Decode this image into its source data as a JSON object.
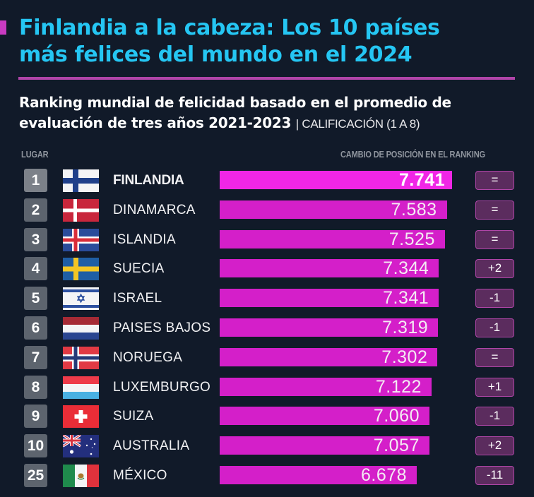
{
  "header": {
    "title_line1": "Finlandia a la cabeza: Los 10 países",
    "title_line2": "más felices del mundo en el 2024",
    "subtitle_line1": "Ranking mundial de felicidad basado en el promedio de",
    "subtitle_line2": "evaluación de tres años 2021-2023",
    "subtitle_note": "| CALIFICACIÓN (1 A 8)"
  },
  "columns": {
    "place": "LUGAR",
    "change": "CAMBIO DE POSICIÓN EN EL RANKING"
  },
  "colors": {
    "background": "#111a29",
    "title": "#25c6f3",
    "bar": "#d41fc9",
    "bar_highlight": "#f126e6",
    "badge": "#5b2c5e",
    "badge_border": "#b046a8",
    "divider": "#b044a8"
  },
  "chart_data": {
    "type": "bar",
    "orientation": "horizontal",
    "title": "Finlandia a la cabeza: Los 10 países más felices del mundo en el 2024",
    "subtitle": "Ranking mundial de felicidad basado en el promedio de evaluación de tres años 2021-2023 | CALIFICACIÓN (1 A 8)",
    "xlabel": "Calificación (1 a 8)",
    "ylabel": "Lugar",
    "categories": [
      "FINLANDIA",
      "DINAMARCA",
      "ISLANDIA",
      "SUECIA",
      "ISRAEL",
      "PAISES BAJOS",
      "NORUEGA",
      "LUXEMBURGO",
      "SUIZA",
      "AUSTRALIA",
      "MÉXICO"
    ],
    "values": [
      7.741,
      7.583,
      7.525,
      7.344,
      7.341,
      7.319,
      7.302,
      7.122,
      7.06,
      7.057,
      6.678
    ],
    "value_labels": [
      "7.741",
      "7.583",
      "7.525",
      "7.344",
      "7.341",
      "7.319",
      "7.302",
      "7.122",
      "7.060",
      "7.057",
      "6.678"
    ],
    "ranks": [
      "1",
      "2",
      "3",
      "4",
      "5",
      "6",
      "7",
      "8",
      "9",
      "10",
      "25"
    ],
    "rank_change": [
      "=",
      "=",
      "=",
      "+2",
      "-1",
      "-1",
      "=",
      "+1",
      "-1",
      "+2",
      "-11"
    ],
    "flags": [
      "finland-flag",
      "denmark-flag",
      "iceland-flag",
      "sweden-flag",
      "israel-flag",
      "netherlands-flag",
      "norway-flag",
      "luxembourg-flag",
      "switzerland-flag",
      "australia-flag",
      "mexico-flag"
    ],
    "highlight_index": 0
  }
}
